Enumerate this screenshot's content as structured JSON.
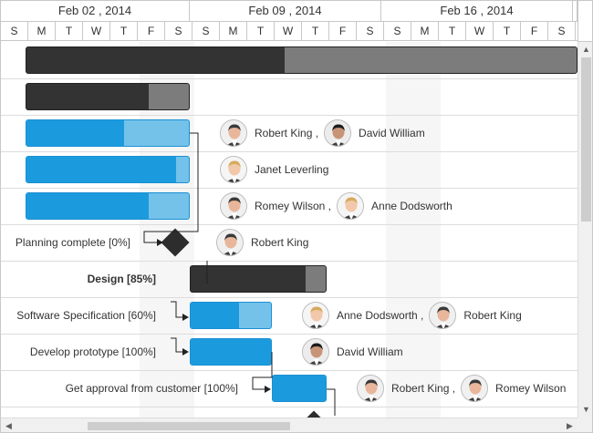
{
  "header": {
    "weeks": [
      "Feb 02 , 2014",
      "Feb 09 , 2014",
      "Feb 16 , 2014",
      ""
    ],
    "days": [
      "S",
      "M",
      "T",
      "W",
      "T",
      "F",
      "S",
      "S",
      "M",
      "T",
      "W",
      "T",
      "F",
      "S",
      "S",
      "M",
      "T",
      "W",
      "T",
      "F",
      "S",
      "S"
    ]
  },
  "rows": [
    {
      "type": "summary",
      "label": "",
      "progress": 0.47
    },
    {
      "type": "summary",
      "label": "",
      "progress": 0.75
    },
    {
      "type": "task",
      "label": "",
      "progress": 0.6,
      "resources": [
        {
          "name": "Robert King ,",
          "avatar": "male"
        },
        {
          "name": "David William",
          "avatar": "male-dark"
        }
      ]
    },
    {
      "type": "task",
      "label": "",
      "progress": 0.92,
      "resources": [
        {
          "name": "Janet Leverling",
          "avatar": "female-blonde"
        }
      ]
    },
    {
      "type": "task",
      "label": "",
      "progress": 0.75,
      "resources": [
        {
          "name": "Romey Wilson ,",
          "avatar": "male"
        },
        {
          "name": "Anne Dodsworth",
          "avatar": "female-blonde"
        }
      ]
    },
    {
      "type": "milestone",
      "label": "Planning complete [0%]",
      "progress": 0,
      "resources": [
        {
          "name": "Robert King",
          "avatar": "male"
        }
      ]
    },
    {
      "type": "summary",
      "label": "Design [85%]",
      "progress": 0.85
    },
    {
      "type": "task",
      "label": "Software Specification [60%]",
      "progress": 0.6,
      "resources": [
        {
          "name": "Anne Dodsworth ,",
          "avatar": "female-blonde"
        },
        {
          "name": "Robert King",
          "avatar": "male"
        }
      ]
    },
    {
      "type": "task",
      "label": "Develop prototype [100%]",
      "progress": 1.0,
      "resources": [
        {
          "name": "David William",
          "avatar": "male-dark"
        }
      ]
    },
    {
      "type": "task",
      "label": "Get approval from customer [100%]",
      "progress": 1.0,
      "resources": [
        {
          "name": "Robert King ,",
          "avatar": "male"
        },
        {
          "name": "Romey Wilson",
          "avatar": "male"
        }
      ]
    },
    {
      "type": "milestone",
      "label": "",
      "progress": 0
    }
  ],
  "colors": {
    "summary": "#333333",
    "summary_remaining": "#7c7c7c",
    "task_progress": "#1b9bdd",
    "task_remaining": "#74c2ea",
    "milestone": "#2d2d2d"
  },
  "icons": {
    "scroll_up": "chevron-up-icon",
    "scroll_down": "chevron-down-icon",
    "scroll_left": "chevron-left-icon",
    "scroll_right": "chevron-right-icon"
  }
}
